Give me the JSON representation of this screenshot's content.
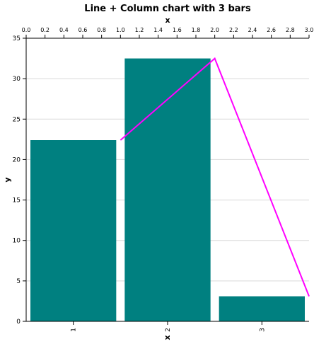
{
  "chart_data": {
    "type": "bar",
    "title": "Line + Column chart with 3 bars",
    "xlabel": "x",
    "ylabel": "y",
    "categories": [
      "1",
      "2",
      "3"
    ],
    "series": [
      {
        "type": "bar",
        "values": [
          22.4,
          32.5,
          3.1
        ],
        "color": "#008080"
      },
      {
        "type": "line",
        "color": "#ff00ff",
        "x": [
          1.0,
          2.0,
          3.0
        ],
        "y": [
          22.4,
          32.5,
          3.1
        ]
      }
    ],
    "ylim": [
      0,
      35
    ],
    "yticks": [
      "0",
      "5",
      "10",
      "15",
      "20",
      "25",
      "30",
      "35"
    ],
    "x2label": "x",
    "x2lim": [
      0,
      3
    ],
    "x2ticks": [
      "0.0",
      "0.2",
      "0.4",
      "0.6",
      "0.8",
      "1.0",
      "1.2",
      "1.4",
      "1.6",
      "1.8",
      "2.0",
      "2.2",
      "2.4",
      "2.6",
      "2.8",
      "3.0"
    ],
    "grid": true,
    "legend": "none"
  }
}
